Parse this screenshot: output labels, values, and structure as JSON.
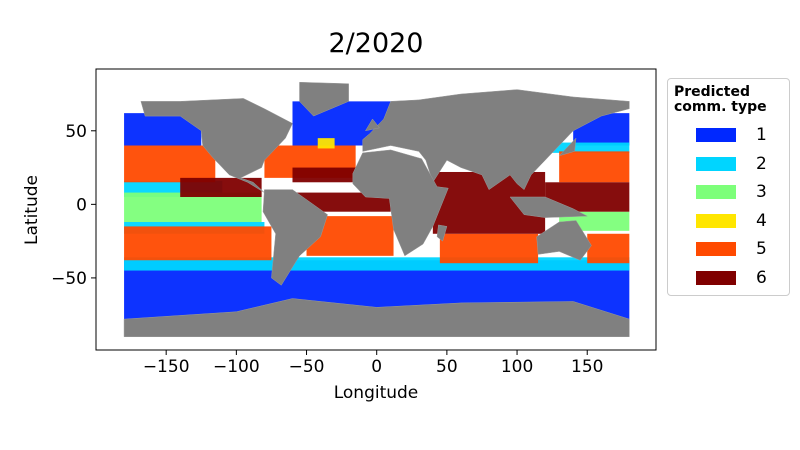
{
  "chart_data": {
    "type": "map",
    "title": "2/2020",
    "x_label": "Longitude",
    "y_label": "Latitude",
    "xlim": [
      -200,
      199
    ],
    "ylim": [
      -99,
      92
    ],
    "xticks": [
      {
        "value": -150,
        "label": "−150"
      },
      {
        "value": -100,
        "label": "−100"
      },
      {
        "value": -50,
        "label": "−50"
      },
      0,
      50,
      100,
      150
    ],
    "yticks": [
      {
        "value": -50,
        "label": "−50"
      },
      0,
      50
    ],
    "legend_title": "Predicted\ncomm. type",
    "legend_position": "outside right",
    "land_color": "#808080",
    "series": [
      {
        "name": "1",
        "color": "#0028ff"
      },
      {
        "name": "2",
        "color": "#00d5ff"
      },
      {
        "name": "3",
        "color": "#7dff7a"
      },
      {
        "name": "4",
        "color": "#ffe600"
      },
      {
        "name": "5",
        "color": "#ff4a00"
      },
      {
        "name": "6",
        "color": "#800000"
      }
    ]
  }
}
